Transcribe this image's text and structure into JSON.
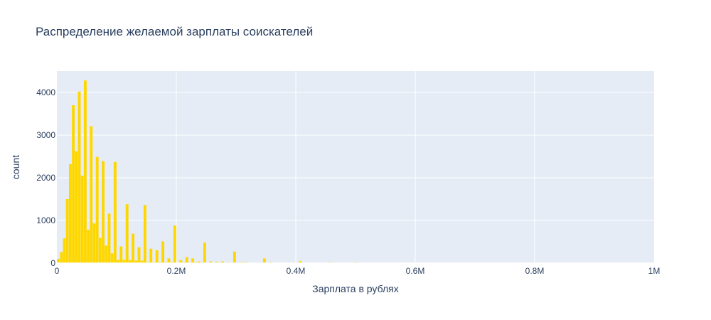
{
  "chart_data": {
    "type": "bar",
    "title": "Распределение желаемой зарплаты соискателей",
    "xlabel": "Зарплата в рублях",
    "ylabel": "count",
    "xlim": [
      0,
      1000000
    ],
    "ylim": [
      0,
      4500
    ],
    "bin_width": 5000,
    "x_ticks": [
      0,
      200000,
      400000,
      600000,
      800000,
      1000000
    ],
    "x_tick_labels": [
      "0",
      "0.2M",
      "0.4M",
      "0.6M",
      "0.8M",
      "1M"
    ],
    "y_ticks": [
      0,
      1000,
      2000,
      3000,
      4000
    ],
    "y_tick_labels": [
      "0",
      "1000",
      "2000",
      "3000",
      "4000"
    ],
    "grid": true,
    "bar_color": "#FFD700",
    "plot_bg": "#E5ECF6",
    "x": [
      0,
      5000,
      10000,
      15000,
      20000,
      25000,
      30000,
      35000,
      40000,
      45000,
      50000,
      55000,
      60000,
      65000,
      70000,
      75000,
      80000,
      85000,
      90000,
      95000,
      100000,
      105000,
      110000,
      115000,
      120000,
      125000,
      130000,
      135000,
      140000,
      145000,
      150000,
      155000,
      160000,
      165000,
      170000,
      175000,
      180000,
      185000,
      190000,
      195000,
      200000,
      205000,
      210000,
      215000,
      220000,
      225000,
      230000,
      235000,
      240000,
      245000,
      250000,
      255000,
      260000,
      265000,
      270000,
      275000,
      280000,
      285000,
      290000,
      295000,
      300000,
      305000,
      310000,
      315000,
      320000,
      325000,
      330000,
      335000,
      340000,
      345000,
      350000,
      355000,
      360000,
      365000,
      370000,
      375000,
      380000,
      385000,
      390000,
      395000,
      400000,
      405000,
      410000,
      415000,
      420000,
      425000,
      430000,
      435000,
      440000,
      445000,
      450000,
      455000,
      460000,
      465000,
      470000,
      475000,
      480000,
      485000,
      490000,
      495000,
      500000
    ],
    "values": [
      100,
      260,
      580,
      1500,
      2320,
      3700,
      2620,
      4020,
      2050,
      4280,
      780,
      3210,
      930,
      2490,
      590,
      2390,
      410,
      1160,
      230,
      2370,
      70,
      390,
      80,
      1380,
      70,
      690,
      60,
      370,
      60,
      1360,
      20,
      340,
      20,
      300,
      20,
      510,
      20,
      110,
      20,
      880,
      10,
      70,
      20,
      140,
      15,
      110,
      20,
      40,
      10,
      480,
      10,
      40,
      10,
      30,
      10,
      40,
      5,
      20,
      10,
      270,
      5,
      20,
      20,
      20,
      0,
      5,
      5,
      0,
      0,
      110,
      0,
      20,
      0,
      0,
      0,
      0,
      0,
      0,
      0,
      5,
      0,
      50,
      0,
      0,
      0,
      0,
      0,
      0,
      0,
      0,
      0,
      20,
      0,
      0,
      0,
      0,
      0,
      0,
      0,
      0,
      20
    ]
  }
}
